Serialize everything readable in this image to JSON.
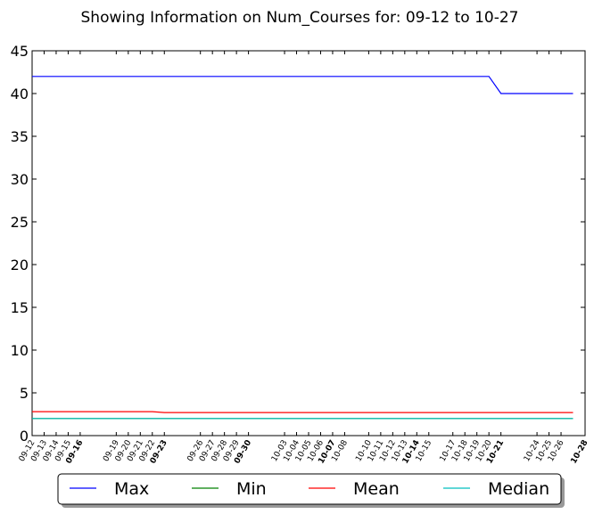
{
  "chart_data": {
    "type": "line",
    "title": "Showing Information on Num_Courses for: 09-12 to 10-27",
    "xlabel": "",
    "ylabel": "",
    "ylim": [
      0,
      45
    ],
    "yticks": [
      0,
      5,
      10,
      15,
      20,
      25,
      30,
      35,
      40,
      45
    ],
    "xlim": [
      "09-12",
      "10-28"
    ],
    "grid": false,
    "legend_position": "bottom",
    "legend_columns": 4,
    "xtick_labels": [
      {
        "label": "09-12",
        "bold": false
      },
      {
        "label": "09-13",
        "bold": false
      },
      {
        "label": "09-14",
        "bold": false
      },
      {
        "label": "09-15",
        "bold": false
      },
      {
        "label": "09-16",
        "bold": true
      },
      {
        "label": "09-19",
        "bold": false
      },
      {
        "label": "09-20",
        "bold": false
      },
      {
        "label": "09-21",
        "bold": false
      },
      {
        "label": "09-22",
        "bold": false
      },
      {
        "label": "09-23",
        "bold": true
      },
      {
        "label": "09-26",
        "bold": false
      },
      {
        "label": "09-27",
        "bold": false
      },
      {
        "label": "09-28",
        "bold": false
      },
      {
        "label": "09-29",
        "bold": false
      },
      {
        "label": "09-30",
        "bold": true
      },
      {
        "label": "10-03",
        "bold": false
      },
      {
        "label": "10-04",
        "bold": false
      },
      {
        "label": "10-05",
        "bold": false
      },
      {
        "label": "10-06",
        "bold": false
      },
      {
        "label": "10-07",
        "bold": true
      },
      {
        "label": "10-08",
        "bold": false
      },
      {
        "label": "10-10",
        "bold": false
      },
      {
        "label": "10-11",
        "bold": false
      },
      {
        "label": "10-12",
        "bold": false
      },
      {
        "label": "10-13",
        "bold": false
      },
      {
        "label": "10-14",
        "bold": true
      },
      {
        "label": "10-15",
        "bold": false
      },
      {
        "label": "10-17",
        "bold": false
      },
      {
        "label": "10-18",
        "bold": false
      },
      {
        "label": "10-19",
        "bold": false
      },
      {
        "label": "10-20",
        "bold": false
      },
      {
        "label": "10-21",
        "bold": true
      },
      {
        "label": "10-24",
        "bold": false
      },
      {
        "label": "10-25",
        "bold": false
      },
      {
        "label": "10-26",
        "bold": false
      },
      {
        "label": "10-28",
        "bold": true
      }
    ],
    "series": [
      {
        "name": "Max",
        "color": "#0000ff",
        "points": [
          [
            "09-12",
            42
          ],
          [
            "10-20",
            42
          ],
          [
            "10-21",
            40
          ],
          [
            "10-27",
            40
          ]
        ]
      },
      {
        "name": "Min",
        "color": "#008000",
        "points": [
          [
            "09-12",
            2
          ],
          [
            "10-27",
            2
          ]
        ]
      },
      {
        "name": "Mean",
        "color": "#ff0000",
        "points": [
          [
            "09-12",
            2.8
          ],
          [
            "09-22",
            2.8
          ],
          [
            "09-23",
            2.7
          ],
          [
            "10-27",
            2.7
          ]
        ]
      },
      {
        "name": "Median",
        "color": "#00bfbf",
        "points": [
          [
            "09-12",
            2
          ],
          [
            "10-27",
            2
          ]
        ]
      }
    ]
  }
}
